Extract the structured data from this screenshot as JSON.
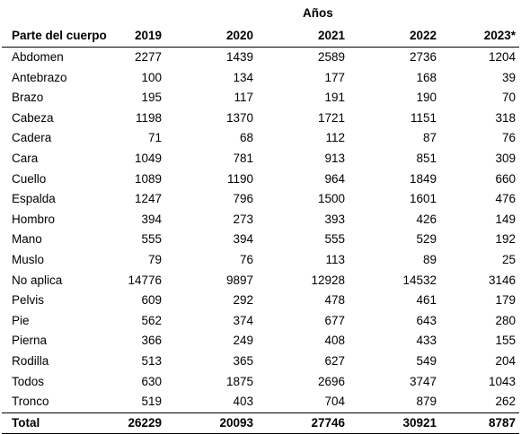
{
  "header": {
    "group_label": "Años",
    "columns": [
      "Parte del cuerpo",
      "2019",
      "2020",
      "2021",
      "2022",
      "2023*"
    ]
  },
  "rows": [
    {
      "label": "Abdomen",
      "values": [
        "2277",
        "1439",
        "2589",
        "2736",
        "1204"
      ]
    },
    {
      "label": "Antebrazo",
      "values": [
        "100",
        "134",
        "177",
        "168",
        "39"
      ]
    },
    {
      "label": "Brazo",
      "values": [
        "195",
        "117",
        "191",
        "190",
        "70"
      ]
    },
    {
      "label": "Cabeza",
      "values": [
        "1198",
        "1370",
        "1721",
        "1151",
        "318"
      ]
    },
    {
      "label": "Cadera",
      "values": [
        "71",
        "68",
        "112",
        "87",
        "76"
      ]
    },
    {
      "label": "Cara",
      "values": [
        "1049",
        "781",
        "913",
        "851",
        "309"
      ]
    },
    {
      "label": "Cuello",
      "values": [
        "1089",
        "1190",
        "964",
        "1849",
        "660"
      ]
    },
    {
      "label": "Espalda",
      "values": [
        "1247",
        "796",
        "1500",
        "1601",
        "476"
      ]
    },
    {
      "label": "Hombro",
      "values": [
        "394",
        "273",
        "393",
        "426",
        "149"
      ]
    },
    {
      "label": "Mano",
      "values": [
        "555",
        "394",
        "555",
        "529",
        "192"
      ]
    },
    {
      "label": "Muslo",
      "values": [
        "79",
        "76",
        "113",
        "89",
        "25"
      ]
    },
    {
      "label": "No aplica",
      "values": [
        "14776",
        "9897",
        "12928",
        "14532",
        "3146"
      ]
    },
    {
      "label": "Pelvis",
      "values": [
        "609",
        "292",
        "478",
        "461",
        "179"
      ]
    },
    {
      "label": "Pie",
      "values": [
        "562",
        "374",
        "677",
        "643",
        "280"
      ]
    },
    {
      "label": "Pierna",
      "values": [
        "366",
        "249",
        "408",
        "433",
        "155"
      ]
    },
    {
      "label": "Rodilla",
      "values": [
        "513",
        "365",
        "627",
        "549",
        "204"
      ]
    },
    {
      "label": "Todos",
      "values": [
        "630",
        "1875",
        "2696",
        "3747",
        "1043"
      ]
    },
    {
      "label": "Tronco",
      "values": [
        "519",
        "403",
        "704",
        "879",
        "262"
      ]
    }
  ],
  "total": {
    "label": "Total",
    "values": [
      "26229",
      "20093",
      "27746",
      "30921",
      "8787"
    ]
  }
}
